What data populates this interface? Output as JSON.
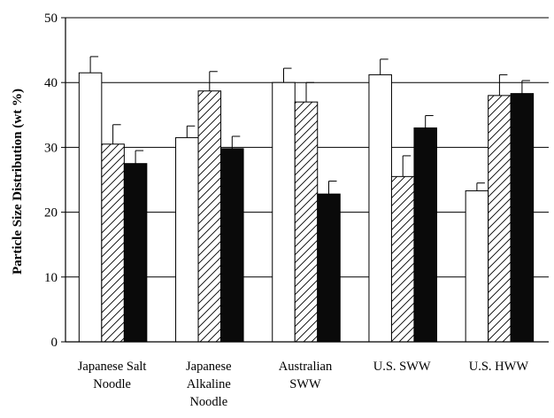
{
  "chart_data": {
    "type": "bar",
    "title": "",
    "xlabel": "",
    "ylabel": "Particle Size Distribution (wt %)",
    "ylim": [
      0,
      50
    ],
    "yticks": [
      "0",
      "10",
      "20",
      "30",
      "40",
      "50"
    ],
    "grid": true,
    "legend": "none",
    "categories": [
      [
        "Japanese Salt",
        "Noodle"
      ],
      [
        "Japanese",
        "Alkaline",
        "Noodle"
      ],
      [
        "Australian",
        "SWW"
      ],
      [
        "U.S. SWW"
      ],
      [
        "U.S. HWW"
      ]
    ],
    "series": [
      {
        "fill": "white",
        "values": [
          41.5,
          31.5,
          40.0,
          41.2,
          23.3
        ],
        "errors": [
          2.5,
          1.8,
          2.2,
          2.4,
          1.2
        ]
      },
      {
        "fill": "hatched",
        "values": [
          30.5,
          38.7,
          37.0,
          25.5,
          38.0
        ],
        "errors": [
          3.0,
          3.0,
          3.0,
          3.2,
          3.2
        ]
      },
      {
        "fill": "black",
        "values": [
          27.5,
          29.8,
          22.8,
          33.0,
          38.3
        ],
        "errors": [
          2.0,
          1.9,
          2.0,
          1.9,
          2.0
        ]
      }
    ],
    "colors": {
      "axis": "#000000",
      "grid": "#000000",
      "black_bar": "#0a0a0a"
    }
  }
}
